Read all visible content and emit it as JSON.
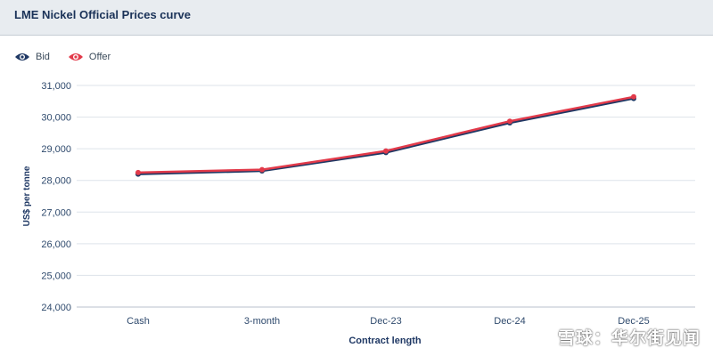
{
  "header": {
    "title": "LME Nickel Official Prices curve"
  },
  "legend": {
    "bid_label": "Bid",
    "offer_label": "Offer"
  },
  "watermark": "雪球：华尔街见闻",
  "colors": {
    "bid": "#1f3864",
    "offer": "#e23a4a",
    "grid": "#dde3ea",
    "axis_text": "#2f4a6d"
  },
  "chart_data": {
    "type": "line",
    "title": "LME Nickel Official Prices curve",
    "xlabel": "Contract length",
    "ylabel": "US$ per tonne",
    "categories": [
      "Cash",
      "3-month",
      "Dec-23",
      "Dec-24",
      "Dec-25"
    ],
    "series": [
      {
        "name": "Bid",
        "values": [
          28200,
          28300,
          28880,
          29820,
          30590
        ]
      },
      {
        "name": "Offer",
        "values": [
          28250,
          28340,
          28930,
          29870,
          30640
        ]
      }
    ],
    "ylim": [
      24000,
      31000
    ],
    "yticks": [
      24000,
      25000,
      26000,
      27000,
      28000,
      29000,
      30000,
      31000
    ],
    "ytick_labels": [
      "24,000",
      "25,000",
      "26,000",
      "27,000",
      "28,000",
      "29,000",
      "30,000",
      "31,000"
    ],
    "grid": true,
    "legend_position": "top-left"
  }
}
